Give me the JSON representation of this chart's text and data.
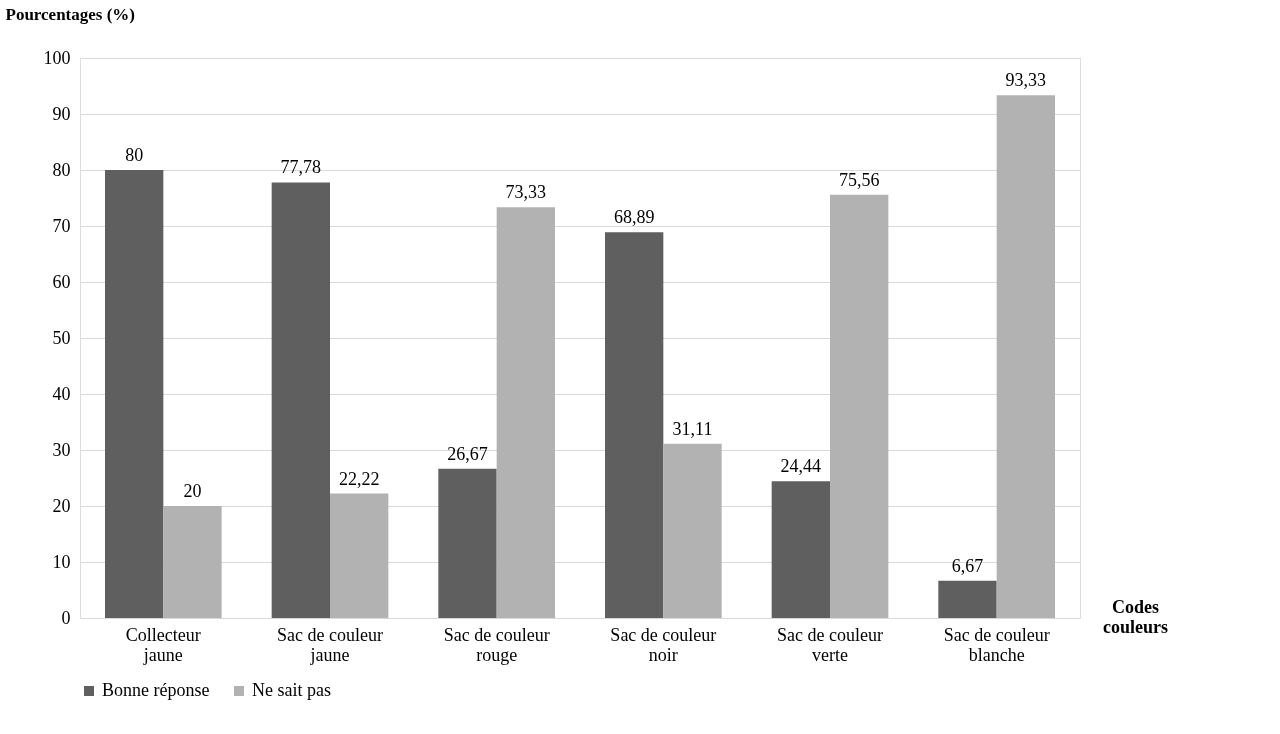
{
  "chart_data": {
    "type": "bar",
    "ylabel": "Pourcentages (%)",
    "xlabel": "Codes couleurs",
    "categories": [
      "Collecteur jaune",
      "Sac de couleur jaune",
      "Sac de couleur rouge",
      "Sac de couleur noir",
      "Sac de couleur verte",
      "Sac de couleur blanche"
    ],
    "series": [
      {
        "name": "Bonne réponse",
        "color": "#5f5f5f",
        "values": [
          80,
          77.78,
          26.67,
          68.89,
          24.44,
          6.67
        ],
        "value_labels": [
          "80",
          "77,78",
          "26,67",
          "68,89",
          "24,44",
          "6,67"
        ]
      },
      {
        "name": "Ne sait pas",
        "color": "#b2b2b2",
        "values": [
          20,
          22.22,
          73.33,
          31.11,
          75.56,
          93.33
        ],
        "value_labels": [
          "20",
          "22,22",
          "73,33",
          "31,11",
          "75,56",
          "93,33"
        ]
      }
    ],
    "ylim": [
      0,
      100
    ],
    "yticks": [
      0,
      10,
      20,
      30,
      40,
      50,
      60,
      70,
      80,
      90,
      100
    ],
    "grid": "y",
    "legend": "bottom"
  }
}
